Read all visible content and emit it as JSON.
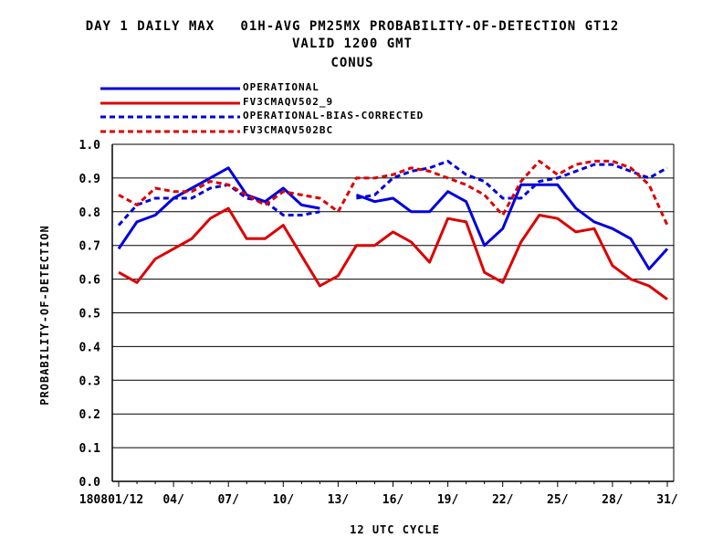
{
  "chart_data": {
    "type": "line",
    "title": [
      "DAY 1 DAILY MAX   01H-AVG PM25MX PROBABILITY-OF-DETECTION GT12",
      "VALID 1200 GMT",
      "CONUS"
    ],
    "xlabel": "12 UTC CYCLE",
    "ylabel": "PROBABILITY-OF-DETECTION",
    "ylim": [
      0.0,
      1.0
    ],
    "yticks": [
      "0.0",
      "0.1",
      "0.2",
      "0.3",
      "0.4",
      "0.5",
      "0.6",
      "0.7",
      "0.8",
      "0.9",
      "1.0"
    ],
    "xlim": [
      1,
      31
    ],
    "xticks": [
      {
        "x": 1,
        "label": "180801/12"
      },
      {
        "x": 4,
        "label": "04/"
      },
      {
        "x": 7,
        "label": "07/"
      },
      {
        "x": 10,
        "label": "10/"
      },
      {
        "x": 13,
        "label": "13/"
      },
      {
        "x": 16,
        "label": "16/"
      },
      {
        "x": 19,
        "label": "19/"
      },
      {
        "x": 22,
        "label": "22/"
      },
      {
        "x": 25,
        "label": "25/"
      },
      {
        "x": 28,
        "label": "28/"
      },
      {
        "x": 31,
        "label": "31/"
      }
    ],
    "grid": "horizontal",
    "legend_position": "top-left",
    "x": [
      1,
      2,
      3,
      4,
      5,
      6,
      7,
      8,
      9,
      10,
      11,
      12,
      13,
      14,
      15,
      16,
      17,
      18,
      19,
      20,
      21,
      22,
      23,
      24,
      25,
      26,
      27,
      28,
      29,
      30,
      31
    ],
    "series": [
      {
        "name": "OPERATIONAL",
        "color": "#0000dd",
        "dash": "solid",
        "values": [
          0.69,
          0.77,
          0.79,
          0.84,
          0.87,
          0.9,
          0.93,
          0.85,
          0.83,
          0.87,
          0.82,
          0.81,
          null,
          0.85,
          0.83,
          0.84,
          0.8,
          0.8,
          0.86,
          0.83,
          0.7,
          0.75,
          0.88,
          0.88,
          0.88,
          0.81,
          0.77,
          0.75,
          0.72,
          0.63,
          0.69
        ]
      },
      {
        "name": "FV3CMAQV502_9",
        "color": "#dd0000",
        "dash": "solid",
        "values": [
          0.62,
          0.59,
          0.66,
          0.69,
          0.72,
          0.78,
          0.81,
          0.72,
          0.72,
          0.76,
          0.67,
          0.58,
          0.61,
          0.7,
          0.7,
          0.74,
          0.71,
          0.65,
          0.78,
          0.77,
          0.62,
          0.59,
          0.71,
          0.79,
          0.78,
          0.74,
          0.75,
          0.64,
          0.6,
          0.58,
          0.54
        ]
      },
      {
        "name": "OPERATIONAL-BIAS-CORRECTED",
        "color": "#0000dd",
        "dash": "dashed",
        "values": [
          0.76,
          0.82,
          0.84,
          0.84,
          0.84,
          0.87,
          0.88,
          0.84,
          0.83,
          0.79,
          0.79,
          0.8,
          null,
          0.84,
          0.85,
          0.9,
          0.92,
          0.93,
          0.95,
          0.91,
          0.89,
          0.84,
          0.84,
          0.89,
          0.9,
          0.92,
          0.94,
          0.94,
          0.92,
          0.9,
          0.93
        ]
      },
      {
        "name": "FV3CMAQV502BC",
        "color": "#dd0000",
        "dash": "dashed",
        "values": [
          0.85,
          0.82,
          0.87,
          0.86,
          0.86,
          0.89,
          0.88,
          0.85,
          0.82,
          0.86,
          0.85,
          0.84,
          0.8,
          0.9,
          0.9,
          0.91,
          0.93,
          0.92,
          0.9,
          0.88,
          0.85,
          0.79,
          0.89,
          0.95,
          0.91,
          0.94,
          0.95,
          0.95,
          0.93,
          0.88,
          0.76
        ]
      }
    ]
  }
}
